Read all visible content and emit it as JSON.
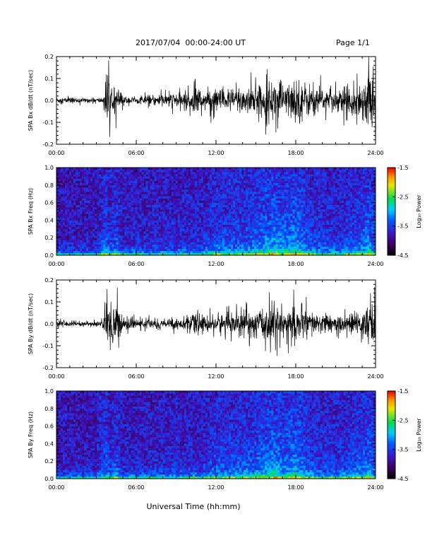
{
  "header": {
    "date_range": "2017/07/04  00:00-24:00 UT",
    "page": "Page 1/1"
  },
  "xlabel": "Universal Time (hh:mm)",
  "colorbar_label": "Log₁₀ Power",
  "colorbar_ticks": [
    "-1.5",
    "-2.5",
    "-3.5",
    "-4.5"
  ],
  "chart_data": [
    {
      "type": "line",
      "ylabel": "SPA Bx dB/dt (nT/sec)",
      "xlim": [
        0,
        24
      ],
      "ylim": [
        -0.2,
        0.2
      ],
      "x_tick_labels": [
        "00:00",
        "06:00",
        "12:00",
        "18:00",
        "24:00"
      ],
      "y_tick_labels": [
        "0.2",
        "0.1",
        "0.0",
        "-0.1",
        "-0.2"
      ],
      "series": [
        {
          "x_hours": [
            0,
            1,
            2,
            3,
            3.5,
            3.8,
            4,
            4.2,
            4.5,
            5,
            6,
            7,
            8,
            9,
            10,
            10.5,
            11,
            12,
            13,
            14,
            15,
            16,
            16.5,
            17,
            17.5,
            18,
            19,
            20,
            21,
            22,
            23,
            23.5,
            24
          ],
          "amplitude": [
            0.02,
            0.02,
            0.015,
            0.015,
            0.02,
            0.2,
            0.16,
            0.04,
            0.1,
            0.03,
            0.02,
            0.03,
            0.04,
            0.05,
            0.06,
            0.1,
            0.06,
            0.08,
            0.07,
            0.1,
            0.09,
            0.12,
            0.14,
            0.1,
            0.11,
            0.15,
            0.1,
            0.08,
            0.07,
            0.09,
            0.12,
            0.2,
            0.15
          ]
        }
      ]
    },
    {
      "type": "heatmap",
      "ylabel": "SPA Bx Freq (Hz)",
      "xlim": [
        0,
        24
      ],
      "ylim": [
        0,
        1.0
      ],
      "x_tick_labels": [
        "00:00",
        "06:00",
        "12:00",
        "18:00",
        "24:00"
      ],
      "y_tick_labels": [
        "1.0",
        "0.8",
        "0.6",
        "0.4",
        "0.2",
        "0.0"
      ],
      "zlim": [
        -4.5,
        -1.5
      ]
    },
    {
      "type": "line",
      "ylabel": "SPA By dB/dt (nT/sec)",
      "xlim": [
        0,
        24
      ],
      "ylim": [
        -0.2,
        0.2
      ],
      "x_tick_labels": [
        "00:00",
        "06:00",
        "12:00",
        "18:00",
        "24:00"
      ],
      "y_tick_labels": [
        "0.2",
        "0.1",
        "0.0",
        "-0.1",
        "-0.2"
      ],
      "series": [
        {
          "x_hours": [
            0,
            1,
            2,
            3,
            3.5,
            3.8,
            4,
            4.3,
            4.6,
            5,
            6,
            7,
            8,
            9,
            10,
            10.5,
            11,
            12,
            13,
            14,
            15,
            16,
            16.5,
            17,
            17.5,
            18,
            19,
            20,
            21,
            22,
            23,
            23.5,
            24
          ],
          "amplitude": [
            0.02,
            0.02,
            0.015,
            0.015,
            0.02,
            0.2,
            0.15,
            0.2,
            0.12,
            0.04,
            0.03,
            0.03,
            0.03,
            0.035,
            0.04,
            0.08,
            0.05,
            0.07,
            0.06,
            0.08,
            0.08,
            0.12,
            0.14,
            0.09,
            0.1,
            0.12,
            0.08,
            0.06,
            0.05,
            0.06,
            0.08,
            0.2,
            0.12
          ]
        }
      ]
    },
    {
      "type": "heatmap",
      "ylabel": "SPA By Freq (Hz)",
      "xlim": [
        0,
        24
      ],
      "ylim": [
        0,
        1.0
      ],
      "x_tick_labels": [
        "00:00",
        "06:00",
        "12:00",
        "18:00",
        "24:00"
      ],
      "y_tick_labels": [
        "1.0",
        "0.8",
        "0.6",
        "0.4",
        "0.2",
        "0.0"
      ],
      "zlim": [
        -4.5,
        -1.5
      ]
    }
  ]
}
